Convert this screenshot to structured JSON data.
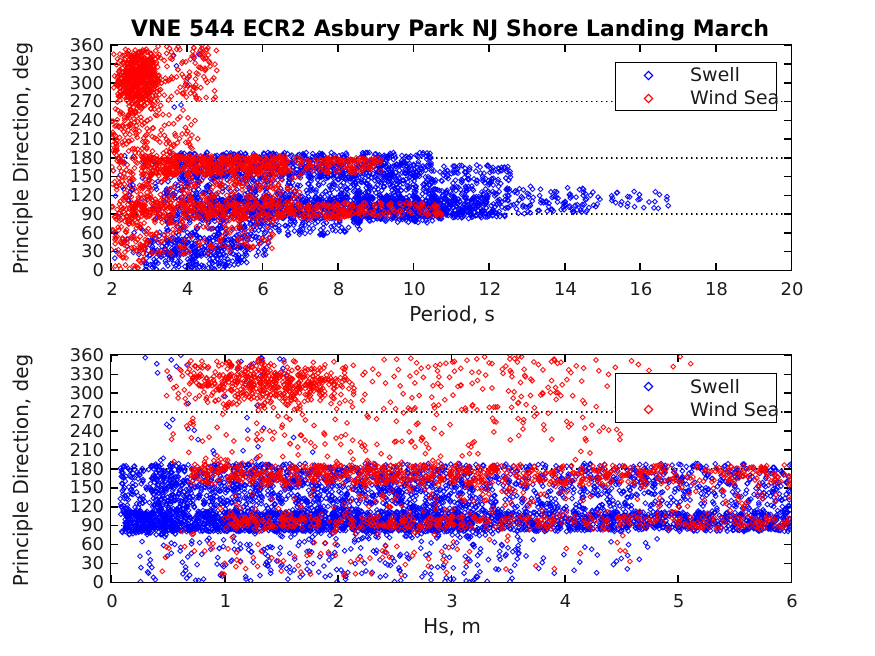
{
  "figure": {
    "background": "#ffffff",
    "text_color": "#1a1a1a",
    "axis_color": "#000000"
  },
  "render": {
    "seed": 20240317,
    "marker": "diamond",
    "marker_size": 2.4
  },
  "chart_data": [
    {
      "type": "scatter",
      "title": "VNE 544 ECR2 Asbury Park NJ Shore Landing March",
      "xlabel": "Period, s",
      "ylabel": "Principle Direction, deg",
      "xlim": [
        2,
        20
      ],
      "ylim": [
        0,
        360
      ],
      "xticks": [
        2,
        4,
        6,
        8,
        10,
        12,
        14,
        16,
        18,
        20
      ],
      "yticks": [
        0,
        30,
        60,
        90,
        120,
        150,
        180,
        210,
        240,
        270,
        300,
        330,
        360
      ],
      "grid_y": [
        90,
        180,
        270
      ],
      "grid_style": "dotted",
      "legend_position": "top-right",
      "legend_labels": [
        "Swell",
        "Wind Sea"
      ],
      "series": [
        {
          "name": "Swell",
          "color": "#0000ff",
          "marker": "diamond",
          "clusters": [
            {
              "n": 700,
              "x": [
                3.5,
                10.5
              ],
              "y": [
                148,
                188
              ]
            },
            {
              "n": 800,
              "x": [
                4.0,
                12.0
              ],
              "y": [
                82,
                118
              ]
            },
            {
              "n": 450,
              "x": [
                3.4,
                6.2
              ],
              "y": [
                20,
                150
              ]
            },
            {
              "n": 300,
              "x": [
                6.0,
                8.6
              ],
              "y": [
                55,
                150
              ]
            },
            {
              "n": 300,
              "x": [
                8.4,
                10.6
              ],
              "y": [
                75,
                150
              ]
            },
            {
              "n": 260,
              "x": [
                10.4,
                12.6
              ],
              "y": [
                85,
                168
              ]
            },
            {
              "n": 230,
              "x": [
                2.9,
                5.6
              ],
              "y": [
                0,
                52
              ]
            },
            {
              "n": 90,
              "x": [
                12.4,
                14.6
              ],
              "y": [
                90,
                135
              ]
            },
            {
              "n": 40,
              "x": [
                14.4,
                16.8
              ],
              "y": [
                98,
                126
              ]
            },
            {
              "n": 70,
              "x": [
                2.05,
                3.4
              ],
              "y": [
                0,
                195
              ]
            },
            {
              "n": 12,
              "x": [
                2.3,
                4.4
              ],
              "y": [
                230,
                360
              ]
            }
          ]
        },
        {
          "name": "Wind Sea",
          "color": "#ff0000",
          "marker": "diamond",
          "clusters": [
            {
              "n": 620,
              "x": [
                2.0,
                3.4
              ],
              "y": [
                256,
                360
              ],
              "dist": "gauss"
            },
            {
              "n": 100,
              "x": [
                3.4,
                4.8
              ],
              "y": [
                272,
                360
              ]
            },
            {
              "n": 240,
              "x": [
                2.0,
                2.95
              ],
              "y": [
                0,
                258
              ]
            },
            {
              "n": 470,
              "x": [
                2.8,
                6.6
              ],
              "y": [
                152,
                183
              ]
            },
            {
              "n": 130,
              "x": [
                6.6,
                9.2
              ],
              "y": [
                155,
                180
              ]
            },
            {
              "n": 420,
              "x": [
                2.4,
                8.3
              ],
              "y": [
                82,
                108
              ]
            },
            {
              "n": 90,
              "x": [
                8.3,
                10.8
              ],
              "y": [
                86,
                108
              ]
            },
            {
              "n": 170,
              "x": [
                2.9,
                7.0
              ],
              "y": [
                108,
                152
              ]
            },
            {
              "n": 140,
              "x": [
                2.3,
                6.3
              ],
              "y": [
                25,
                82
              ]
            },
            {
              "n": 90,
              "x": [
                2.05,
                4.3
              ],
              "y": [
                183,
                258
              ]
            }
          ]
        }
      ]
    },
    {
      "type": "scatter",
      "title": "",
      "xlabel": "Hs, m",
      "ylabel": "Principle Direction, deg",
      "xlim": [
        0,
        6
      ],
      "ylim": [
        0,
        360
      ],
      "xticks": [
        0,
        1,
        2,
        3,
        4,
        5,
        6
      ],
      "yticks": [
        0,
        30,
        60,
        90,
        120,
        150,
        180,
        210,
        240,
        270,
        300,
        330,
        360
      ],
      "grid_y": [
        90,
        180,
        270
      ],
      "grid_style": "dotted",
      "legend_position": "top-right",
      "legend_labels": [
        "Swell",
        "Wind Sea"
      ],
      "series": [
        {
          "name": "Swell",
          "color": "#0000ff",
          "marker": "diamond",
          "clusters": [
            {
              "n": 1500,
              "x": [
                0.12,
                3.2
              ],
              "y": [
                80,
                112
              ]
            },
            {
              "n": 800,
              "x": [
                3.2,
                6.0
              ],
              "y": [
                80,
                112
              ]
            },
            {
              "n": 1100,
              "x": [
                0.35,
                3.2
              ],
              "y": [
                112,
                188
              ]
            },
            {
              "n": 650,
              "x": [
                3.2,
                6.0
              ],
              "y": [
                112,
                188
              ]
            },
            {
              "n": 260,
              "x": [
                0.08,
                0.6
              ],
              "y": [
                75,
                185
              ]
            },
            {
              "n": 280,
              "x": [
                0.25,
                3.6
              ],
              "y": [
                0,
                80
              ]
            },
            {
              "n": 25,
              "x": [
                3.6,
                4.9
              ],
              "y": [
                10,
                70
              ]
            },
            {
              "n": 16,
              "x": [
                0.3,
                2.0
              ],
              "y": [
                188,
                250
              ]
            },
            {
              "n": 22,
              "x": [
                0.3,
                1.6
              ],
              "y": [
                322,
                360
              ]
            },
            {
              "n": 6,
              "x": [
                0.5,
                1.3
              ],
              "y": [
                255,
                320
              ]
            }
          ]
        },
        {
          "name": "Wind Sea",
          "color": "#ff0000",
          "marker": "diamond",
          "clusters": [
            {
              "n": 520,
              "x": [
                0.45,
                2.3
              ],
              "y": [
                268,
                360
              ],
              "dist": "gauss"
            },
            {
              "n": 120,
              "x": [
                2.3,
                4.0
              ],
              "y": [
                268,
                360
              ]
            },
            {
              "n": 35,
              "x": [
                4.0,
                5.2
              ],
              "y": [
                272,
                360
              ]
            },
            {
              "n": 120,
              "x": [
                0.5,
                3.2
              ],
              "y": [
                185,
                268
              ]
            },
            {
              "n": 35,
              "x": [
                3.2,
                4.5
              ],
              "y": [
                190,
                268
              ]
            },
            {
              "n": 450,
              "x": [
                0.7,
                3.4
              ],
              "y": [
                155,
                186
              ]
            },
            {
              "n": 260,
              "x": [
                3.4,
                6.0
              ],
              "y": [
                155,
                186
              ]
            },
            {
              "n": 230,
              "x": [
                1.0,
                3.4
              ],
              "y": [
                84,
                104
              ]
            },
            {
              "n": 170,
              "x": [
                3.4,
                6.0
              ],
              "y": [
                84,
                104
              ]
            },
            {
              "n": 160,
              "x": [
                0.9,
                6.0
              ],
              "y": [
                104,
                155
              ]
            },
            {
              "n": 80,
              "x": [
                0.45,
                3.2
              ],
              "y": [
                8,
                84
              ]
            },
            {
              "n": 15,
              "x": [
                3.2,
                4.6
              ],
              "y": [
                20,
                84
              ]
            }
          ]
        }
      ]
    }
  ]
}
